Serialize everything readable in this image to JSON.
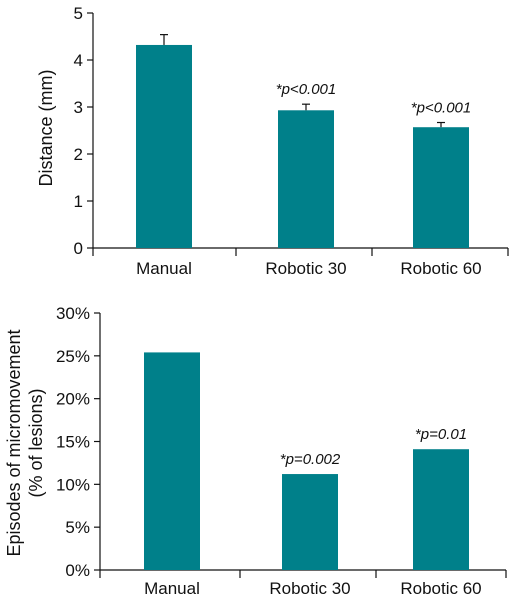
{
  "colors": {
    "bar": "#00808a",
    "axis": "#111111",
    "background": "#ffffff"
  },
  "chart_data": [
    {
      "type": "bar",
      "categories": [
        "Manual",
        "Robotic 30",
        "Robotic 60"
      ],
      "values": [
        4.32,
        2.93,
        2.57
      ],
      "errors": [
        0.22,
        0.13,
        0.1
      ],
      "annotations": [
        "",
        "*p<0.001",
        "*p<0.001"
      ],
      "title": "",
      "xlabel": "",
      "ylabel": "Distance (mm)",
      "ylim": [
        0,
        5
      ],
      "yticks": [
        0,
        1,
        2,
        3,
        4,
        5
      ],
      "ytick_labels": [
        "0",
        "1",
        "2",
        "3",
        "4",
        "5"
      ],
      "grid": false,
      "legend": "none"
    },
    {
      "type": "bar",
      "categories": [
        "Manual",
        "Robotic 30",
        "Robotic 60"
      ],
      "values": [
        25.4,
        11.2,
        14.1
      ],
      "annotations": [
        "",
        "*p=0.002",
        "*p=0.01"
      ],
      "title": "",
      "xlabel": "",
      "ylabel_lines": [
        "Episodes of micromovement",
        "(% of lesions)"
      ],
      "ylim": [
        0,
        30
      ],
      "yticks": [
        0,
        5,
        10,
        15,
        20,
        25,
        30
      ],
      "ytick_labels": [
        "0%",
        "5%",
        "10%",
        "15%",
        "20%",
        "25%",
        "30%"
      ],
      "grid": false,
      "legend": "none"
    }
  ]
}
